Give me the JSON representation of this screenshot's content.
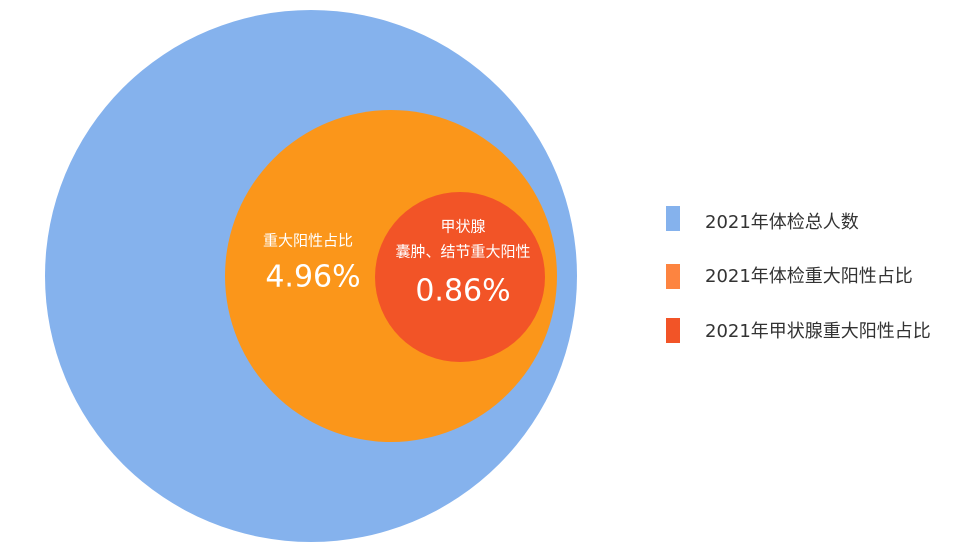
{
  "circles": [
    {
      "legend": "2021年体检总人数"
    },
    {
      "legend": "2021年体检重大阳性占比",
      "label": "重大阳性占比",
      "value": "4.96%"
    },
    {
      "legend": "2021年甲状腺重大阳性占比",
      "label_lines": [
        "甲状腺",
        "囊肿、结节重大阳性"
      ],
      "value": "0.86%"
    }
  ]
}
